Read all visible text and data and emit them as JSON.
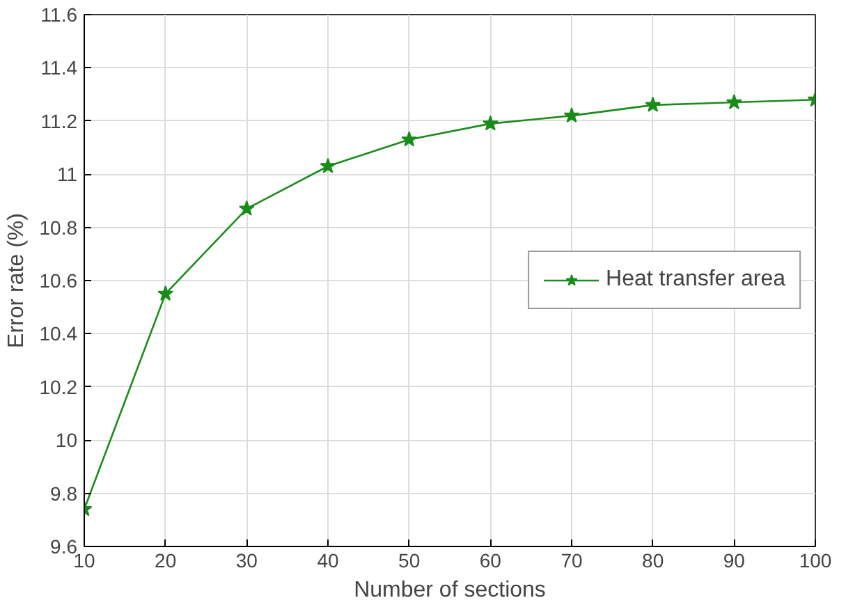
{
  "chart_data": {
    "type": "line",
    "xlabel": "Number of sections",
    "ylabel": "Error rate (%)",
    "x": [
      10,
      20,
      30,
      40,
      50,
      60,
      70,
      80,
      90,
      100
    ],
    "series": [
      {
        "name": "Heat transfer area",
        "color": "#1a8c1a",
        "values": [
          9.74,
          10.55,
          10.87,
          11.03,
          11.13,
          11.19,
          11.22,
          11.26,
          11.27,
          11.28
        ]
      }
    ],
    "xlim": [
      10,
      100
    ],
    "ylim": [
      9.6,
      11.6
    ],
    "xticks": [
      10,
      20,
      30,
      40,
      50,
      60,
      70,
      80,
      90,
      100
    ],
    "yticks": [
      9.6,
      9.8,
      10,
      10.2,
      10.4,
      10.6,
      10.8,
      11,
      11.2,
      11.4,
      11.6
    ],
    "grid": true,
    "legend": "center right",
    "marker": "star",
    "line_style": "solid"
  }
}
